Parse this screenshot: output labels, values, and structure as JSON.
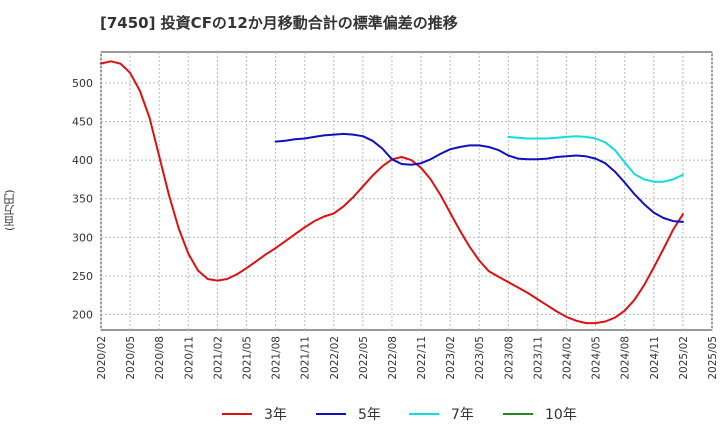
{
  "title": "[7450]  投資CFの12か月移動合計の標準偏差の推移",
  "chart_data": {
    "type": "line",
    "title": "[7450]  投資CFの12か月移動合計の標準偏差の推移",
    "xlabel": "",
    "ylabel": "(百万円)",
    "ylim": [
      180,
      540
    ],
    "yticks": [
      200,
      250,
      300,
      350,
      400,
      450,
      500
    ],
    "xticks": [
      "2020/02",
      "2020/05",
      "2020/08",
      "2020/11",
      "2021/02",
      "2021/05",
      "2021/08",
      "2021/11",
      "2022/02",
      "2022/05",
      "2022/08",
      "2022/11",
      "2023/02",
      "2023/05",
      "2023/08",
      "2023/11",
      "2024/02",
      "2024/05",
      "2024/08",
      "2024/11",
      "2025/02",
      "2025/05"
    ],
    "grid": true,
    "legend_position": "bottom",
    "series": [
      {
        "name": "3年",
        "color": "#dd1111",
        "x": [
          "2020/02",
          "2020/03",
          "2020/04",
          "2020/05",
          "2020/06",
          "2020/07",
          "2020/08",
          "2020/09",
          "2020/10",
          "2020/11",
          "2020/12",
          "2021/01",
          "2021/02",
          "2021/03",
          "2021/04",
          "2021/05",
          "2021/06",
          "2021/07",
          "2021/08",
          "2021/09",
          "2021/10",
          "2021/11",
          "2021/12",
          "2022/01",
          "2022/02",
          "2022/03",
          "2022/04",
          "2022/05",
          "2022/06",
          "2022/07",
          "2022/08",
          "2022/09",
          "2022/10",
          "2022/11",
          "2022/12",
          "2023/01",
          "2023/02",
          "2023/03",
          "2023/04",
          "2023/05",
          "2023/06",
          "2023/07",
          "2023/08",
          "2023/09",
          "2023/10",
          "2023/11",
          "2023/12",
          "2024/01",
          "2024/02",
          "2024/03",
          "2024/04",
          "2024/05",
          "2024/06",
          "2024/07",
          "2024/08",
          "2024/09",
          "2024/10",
          "2024/11",
          "2024/12",
          "2025/01",
          "2025/02"
        ],
        "values": [
          525,
          528,
          525,
          513,
          490,
          455,
          405,
          355,
          312,
          279,
          257,
          246,
          244,
          246,
          252,
          260,
          269,
          278,
          286,
          295,
          304,
          313,
          321,
          327,
          331,
          340,
          352,
          366,
          380,
          392,
          401,
          404,
          400,
          390,
          375,
          355,
          332,
          309,
          288,
          270,
          256,
          249,
          242,
          235,
          228,
          220,
          212,
          204,
          197,
          192,
          189,
          189,
          191,
          196,
          205,
          219,
          238,
          261,
          285,
          310,
          330
        ]
      },
      {
        "name": "5年",
        "color": "#1111bb",
        "x": [
          "2021/08",
          "2021/09",
          "2021/10",
          "2021/11",
          "2021/12",
          "2022/01",
          "2022/02",
          "2022/03",
          "2022/04",
          "2022/05",
          "2022/06",
          "2022/07",
          "2022/08",
          "2022/09",
          "2022/10",
          "2022/11",
          "2022/12",
          "2023/01",
          "2023/02",
          "2023/03",
          "2023/04",
          "2023/05",
          "2023/06",
          "2023/07",
          "2023/08",
          "2023/09",
          "2023/10",
          "2023/11",
          "2023/12",
          "2024/01",
          "2024/02",
          "2024/03",
          "2024/04",
          "2024/05",
          "2024/06",
          "2024/07",
          "2024/08",
          "2024/09",
          "2024/10",
          "2024/11",
          "2024/12",
          "2025/01",
          "2025/02"
        ],
        "values": [
          424,
          425,
          427,
          428,
          430,
          432,
          433,
          434,
          433,
          431,
          425,
          415,
          401,
          395,
          394,
          396,
          401,
          408,
          414,
          417,
          419,
          419,
          417,
          413,
          406,
          402,
          401,
          401,
          402,
          404,
          405,
          406,
          405,
          402,
          396,
          385,
          371,
          356,
          343,
          332,
          325,
          321,
          320
        ]
      },
      {
        "name": "7年",
        "color": "#11dddd",
        "x": [
          "2023/08",
          "2023/09",
          "2023/10",
          "2023/11",
          "2023/12",
          "2024/01",
          "2024/02",
          "2024/03",
          "2024/04",
          "2024/05",
          "2024/06",
          "2024/07",
          "2024/08",
          "2024/09",
          "2024/10",
          "2024/11",
          "2024/12",
          "2025/01",
          "2025/02"
        ],
        "values": [
          430,
          429,
          428,
          428,
          428,
          429,
          430,
          431,
          430,
          428,
          423,
          413,
          397,
          382,
          375,
          372,
          372,
          375,
          381
        ]
      },
      {
        "name": "10年",
        "color": "#228822",
        "x": [],
        "values": []
      }
    ]
  }
}
